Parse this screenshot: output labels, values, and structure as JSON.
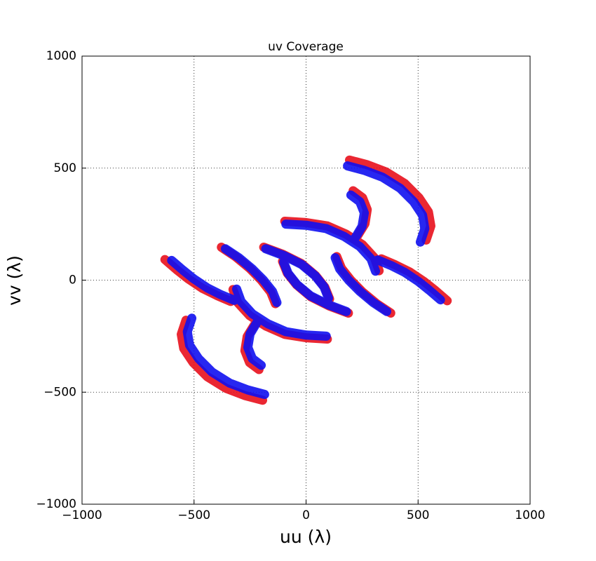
{
  "chart_data": {
    "type": "line",
    "title": "uv Coverage",
    "x_label": "uu (λ)",
    "y_label": "vv (λ)",
    "xlim": [
      -1000,
      1000
    ],
    "ylim": [
      -1000,
      1000
    ],
    "xticks": [
      {
        "value": -1000,
        "label": "−1000"
      },
      {
        "value": -500,
        "label": "−500"
      },
      0,
      500,
      1000
    ],
    "yticks": [
      {
        "value": -1000,
        "label": "−1000"
      },
      {
        "value": -500,
        "label": "−500"
      },
      0,
      500,
      1000
    ],
    "grid": true,
    "line_width": 13,
    "series": [
      {
        "color": "#e8101c",
        "x": [
          194,
          273,
          357,
          441,
          504,
          546,
          557,
          536,
          null,
          -194,
          -273,
          -357,
          -441,
          -504,
          -546,
          -557,
          -536,
          null,
          -630,
          -578,
          -525,
          -462,
          -399,
          -336,
          null,
          630,
          578,
          525,
          462,
          399,
          336,
          null,
          -95,
          0,
          95,
          179,
          252,
          305,
          326,
          null,
          95,
          0,
          -95,
          -179,
          -252,
          -305,
          -326,
          null,
          -189,
          -105,
          -21,
          42,
          84,
          105,
          null,
          189,
          105,
          21,
          -42,
          -84,
          -105,
          null,
          -378,
          -315,
          -252,
          -200,
          -158,
          -137,
          null,
          378,
          315,
          252,
          200,
          158,
          137,
          null,
          210,
          252,
          273,
          263,
          231,
          null,
          -210,
          -252,
          -273,
          -263,
          -231
        ],
        "y": [
          536,
          515,
          483,
          431,
          368,
          305,
          242,
          179,
          null,
          -536,
          -515,
          -483,
          -431,
          -368,
          -305,
          -242,
          -179,
          null,
          92,
          47,
          5,
          -37,
          -68,
          -95,
          null,
          -92,
          -47,
          -5,
          37,
          68,
          95,
          null,
          263,
          257,
          242,
          205,
          158,
          100,
          42,
          null,
          -263,
          -257,
          -242,
          -205,
          -158,
          -100,
          -42,
          null,
          147,
          116,
          74,
          21,
          -32,
          -84,
          null,
          -147,
          -116,
          -74,
          -21,
          32,
          84,
          null,
          147,
          105,
          53,
          0,
          -53,
          -105,
          null,
          -147,
          -105,
          -53,
          0,
          53,
          105,
          null,
          399,
          368,
          315,
          252,
          200,
          null,
          -399,
          -368,
          -315,
          -252,
          -200
        ]
      },
      {
        "color": "#1010f0",
        "x": [
          185,
          260,
          340,
          420,
          480,
          520,
          530,
          510,
          null,
          -185,
          -260,
          -340,
          -420,
          -480,
          -520,
          -530,
          -510,
          null,
          -600,
          -550,
          -500,
          -440,
          -380,
          -320,
          null,
          600,
          550,
          500,
          440,
          380,
          320,
          null,
          -90,
          0,
          90,
          170,
          240,
          290,
          310,
          null,
          90,
          0,
          -90,
          -170,
          -240,
          -290,
          -310,
          null,
          -180,
          -100,
          -20,
          40,
          80,
          100,
          null,
          180,
          100,
          20,
          -40,
          -80,
          -100,
          null,
          -360,
          -300,
          -240,
          -190,
          -150,
          -130,
          null,
          360,
          300,
          240,
          190,
          150,
          130,
          null,
          200,
          240,
          260,
          250,
          220,
          null,
          -200,
          -240,
          -260,
          -250,
          -220
        ],
        "y": [
          510,
          490,
          460,
          410,
          350,
          290,
          230,
          170,
          null,
          -510,
          -490,
          -460,
          -410,
          -350,
          -290,
          -230,
          -170,
          null,
          88,
          45,
          5,
          -35,
          -65,
          -90,
          null,
          -88,
          -45,
          -5,
          35,
          65,
          90,
          null,
          250,
          245,
          230,
          195,
          150,
          95,
          40,
          null,
          -250,
          -245,
          -230,
          -195,
          -150,
          -95,
          -40,
          null,
          140,
          110,
          70,
          20,
          -30,
          -80,
          null,
          -140,
          -110,
          -70,
          -20,
          30,
          80,
          null,
          140,
          100,
          50,
          0,
          -50,
          -100,
          null,
          -140,
          -100,
          -50,
          0,
          50,
          100,
          null,
          380,
          350,
          300,
          240,
          190,
          null,
          -380,
          -350,
          -300,
          -240,
          -190
        ]
      }
    ]
  }
}
